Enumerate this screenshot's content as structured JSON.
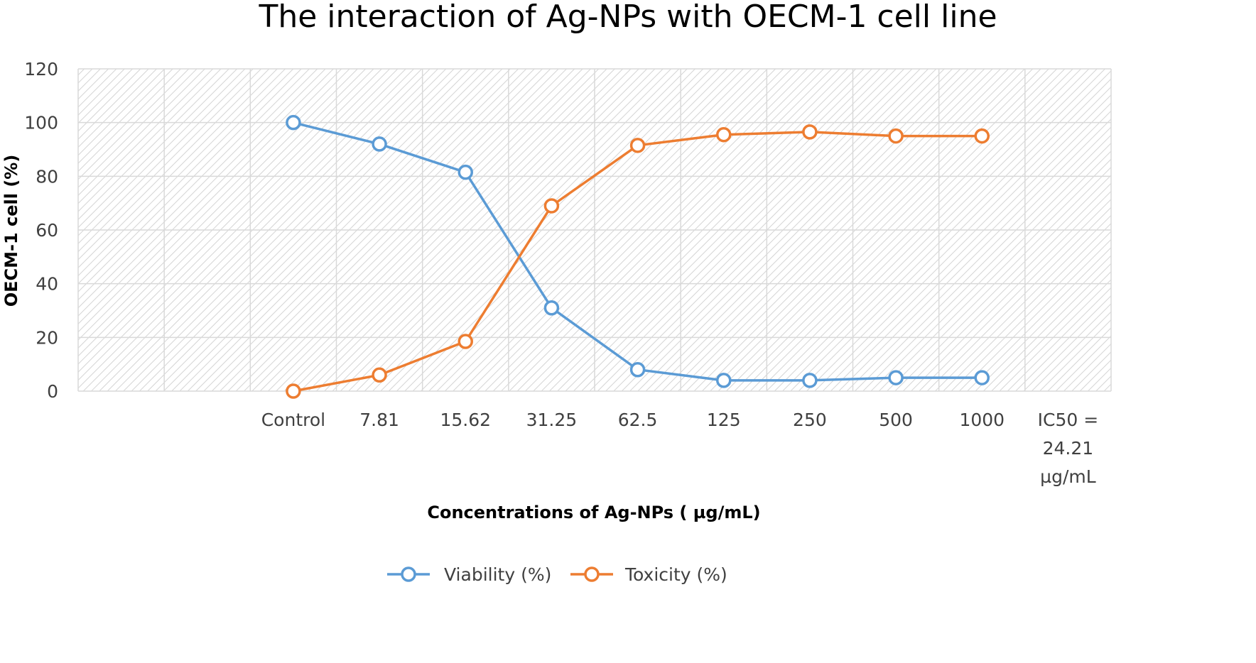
{
  "chart_data": {
    "type": "line",
    "title": "The interaction of Ag-NPs with OECM-1 cell line",
    "xlabel": "Concentrations of Ag-NPs ( µg/mL)",
    "ylabel": "OECM-1 cell (%)",
    "categories": [
      "",
      "",
      "Control",
      "7.81",
      "15.62",
      "31.25",
      "62.5",
      "125",
      "250",
      "500",
      "1000",
      "IC50 = 24.21 µg/mL"
    ],
    "category_lines": [
      [],
      [],
      [
        "Control"
      ],
      [
        "7.81"
      ],
      [
        "15.62"
      ],
      [
        "31.25"
      ],
      [
        "62.5"
      ],
      [
        "125"
      ],
      [
        "250"
      ],
      [
        "500"
      ],
      [
        "1000"
      ],
      [
        "IC50 =",
        "24.21",
        "µg/mL"
      ]
    ],
    "ylim": [
      0,
      120
    ],
    "yticks": [
      0,
      20,
      40,
      60,
      80,
      100,
      120
    ],
    "grid": true,
    "legend_position": "bottom",
    "series": [
      {
        "name": "Viability (%)",
        "color": "#5b9bd5",
        "values": [
          null,
          null,
          100,
          92,
          81.5,
          31,
          8,
          4,
          4,
          5,
          5,
          null
        ]
      },
      {
        "name": "Toxicity (%)",
        "color": "#ed7d31",
        "values": [
          null,
          null,
          0,
          6,
          18.5,
          69,
          91.5,
          95.5,
          96.5,
          95,
          95,
          null
        ]
      }
    ],
    "plot_background": "hatched",
    "hatch_color": "#d9d9d9",
    "gridline_color": "#d9d9d9"
  }
}
